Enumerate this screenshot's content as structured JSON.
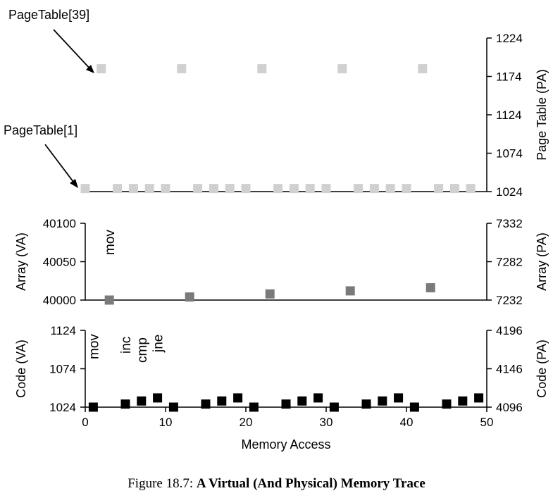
{
  "chart_data": [
    {
      "type": "scatter",
      "panel": "pagetable",
      "y2label": "Page Table (PA)",
      "y2ticks": [
        "1024",
        "1074",
        "1124",
        "1174",
        "1224"
      ],
      "y2lim": [
        1024,
        1224
      ],
      "annotations": [
        {
          "text": "PageTable[39]",
          "x": 2,
          "y": 1184
        },
        {
          "text": "PageTable[1]",
          "x": 0,
          "y": 1028
        }
      ],
      "series": [
        {
          "color": "#d0d0d0",
          "x": [
            0,
            4,
            6,
            8,
            10,
            14,
            16,
            18,
            20,
            24,
            26,
            28,
            30,
            34,
            36,
            38,
            40,
            44,
            46,
            48
          ],
          "y": [
            1028,
            1028,
            1028,
            1028,
            1028,
            1028,
            1028,
            1028,
            1028,
            1028,
            1028,
            1028,
            1028,
            1028,
            1028,
            1028,
            1028,
            1028,
            1028,
            1028
          ]
        },
        {
          "color": "#d0d0d0",
          "x": [
            2,
            12,
            22,
            32,
            42
          ],
          "y": [
            1184,
            1184,
            1184,
            1184,
            1184
          ]
        }
      ]
    },
    {
      "type": "scatter",
      "panel": "array",
      "ylabel": "Array (VA)",
      "y2label": "Array (PA)",
      "yticks": [
        "40000",
        "40050",
        "40100"
      ],
      "y2ticks": [
        "7232",
        "7282",
        "7332"
      ],
      "ylim": [
        40000,
        40100
      ],
      "annotations": [
        {
          "text": "mov",
          "x": 3
        }
      ],
      "series": [
        {
          "color": "#7a7a7a",
          "x": [
            3,
            13,
            23,
            33,
            43
          ],
          "y": [
            40000,
            40004,
            40008,
            40012,
            40016
          ]
        }
      ]
    },
    {
      "type": "scatter",
      "panel": "code",
      "ylabel": "Code (VA)",
      "y2label": "Code (PA)",
      "xlabel": "Memory Access",
      "xticks": [
        "0",
        "10",
        "20",
        "30",
        "40",
        "50"
      ],
      "xlim": [
        0,
        50
      ],
      "yticks": [
        "1024",
        "1074",
        "1124"
      ],
      "y2ticks": [
        "4096",
        "4146",
        "4196"
      ],
      "ylim": [
        1024,
        1124
      ],
      "annotations": [
        {
          "text": "mov",
          "x": 1
        },
        {
          "text": "inc",
          "x": 5
        },
        {
          "text": "cmp",
          "x": 7
        },
        {
          "text": "jne",
          "x": 9
        }
      ],
      "series": [
        {
          "color": "#000000",
          "x": [
            1,
            5,
            7,
            9,
            11,
            15,
            17,
            19,
            21,
            25,
            27,
            29,
            31,
            35,
            37,
            39,
            41,
            45,
            47,
            49
          ],
          "y": [
            1024,
            1028,
            1032,
            1036,
            1024,
            1028,
            1032,
            1036,
            1024,
            1028,
            1032,
            1036,
            1024,
            1028,
            1032,
            1036,
            1024,
            1028,
            1032,
            1036
          ]
        }
      ]
    }
  ],
  "caption": {
    "prefix": "Figure 18.7:",
    "title": "A Virtual (And Physical) Memory Trace"
  }
}
